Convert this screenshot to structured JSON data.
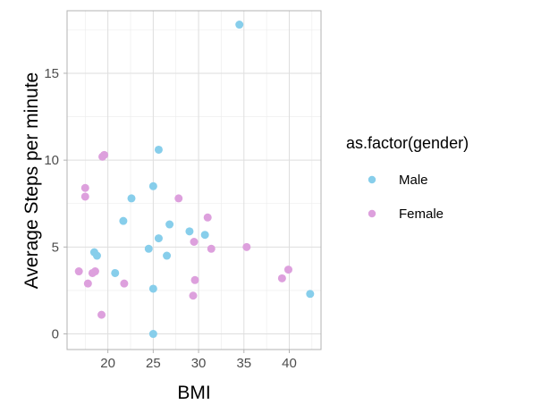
{
  "chart_data": {
    "type": "scatter",
    "title": "",
    "xlabel": "BMI",
    "ylabel": "Average Steps per minute",
    "xlim": [
      15.5,
      43.5
    ],
    "ylim": [
      -0.9,
      18.6
    ],
    "x_ticks": [
      20,
      25,
      30,
      35,
      40
    ],
    "y_ticks": [
      0,
      5,
      10,
      15
    ],
    "grid": true,
    "legend": {
      "title": "as.factor(gender)",
      "position": "right"
    },
    "series": [
      {
        "name": "Male",
        "color": "#87CEEB",
        "points": [
          {
            "x": 34.5,
            "y": 17.8
          },
          {
            "x": 25.6,
            "y": 10.6
          },
          {
            "x": 25.0,
            "y": 8.5
          },
          {
            "x": 22.6,
            "y": 7.8
          },
          {
            "x": 21.7,
            "y": 6.5
          },
          {
            "x": 26.8,
            "y": 6.3
          },
          {
            "x": 29.0,
            "y": 5.9
          },
          {
            "x": 30.7,
            "y": 5.7
          },
          {
            "x": 25.6,
            "y": 5.5
          },
          {
            "x": 24.5,
            "y": 4.9
          },
          {
            "x": 18.5,
            "y": 4.7
          },
          {
            "x": 18.8,
            "y": 4.5
          },
          {
            "x": 26.5,
            "y": 4.5
          },
          {
            "x": 20.8,
            "y": 3.5
          },
          {
            "x": 25.0,
            "y": 2.6
          },
          {
            "x": 42.3,
            "y": 2.3
          },
          {
            "x": 25.0,
            "y": 0.0
          }
        ]
      },
      {
        "name": "Female",
        "color": "#DDA0DD",
        "points": [
          {
            "x": 19.6,
            "y": 10.3
          },
          {
            "x": 19.4,
            "y": 10.2
          },
          {
            "x": 17.5,
            "y": 8.4
          },
          {
            "x": 17.5,
            "y": 7.9
          },
          {
            "x": 27.8,
            "y": 7.8
          },
          {
            "x": 31.0,
            "y": 6.7
          },
          {
            "x": 29.5,
            "y": 5.3
          },
          {
            "x": 35.3,
            "y": 5.0
          },
          {
            "x": 31.4,
            "y": 4.9
          },
          {
            "x": 16.8,
            "y": 3.6
          },
          {
            "x": 18.3,
            "y": 3.5
          },
          {
            "x": 18.6,
            "y": 3.6
          },
          {
            "x": 39.9,
            "y": 3.7
          },
          {
            "x": 39.2,
            "y": 3.2
          },
          {
            "x": 29.6,
            "y": 3.1
          },
          {
            "x": 17.8,
            "y": 2.9
          },
          {
            "x": 21.8,
            "y": 2.9
          },
          {
            "x": 29.4,
            "y": 2.2
          },
          {
            "x": 19.3,
            "y": 1.1
          }
        ]
      }
    ]
  }
}
